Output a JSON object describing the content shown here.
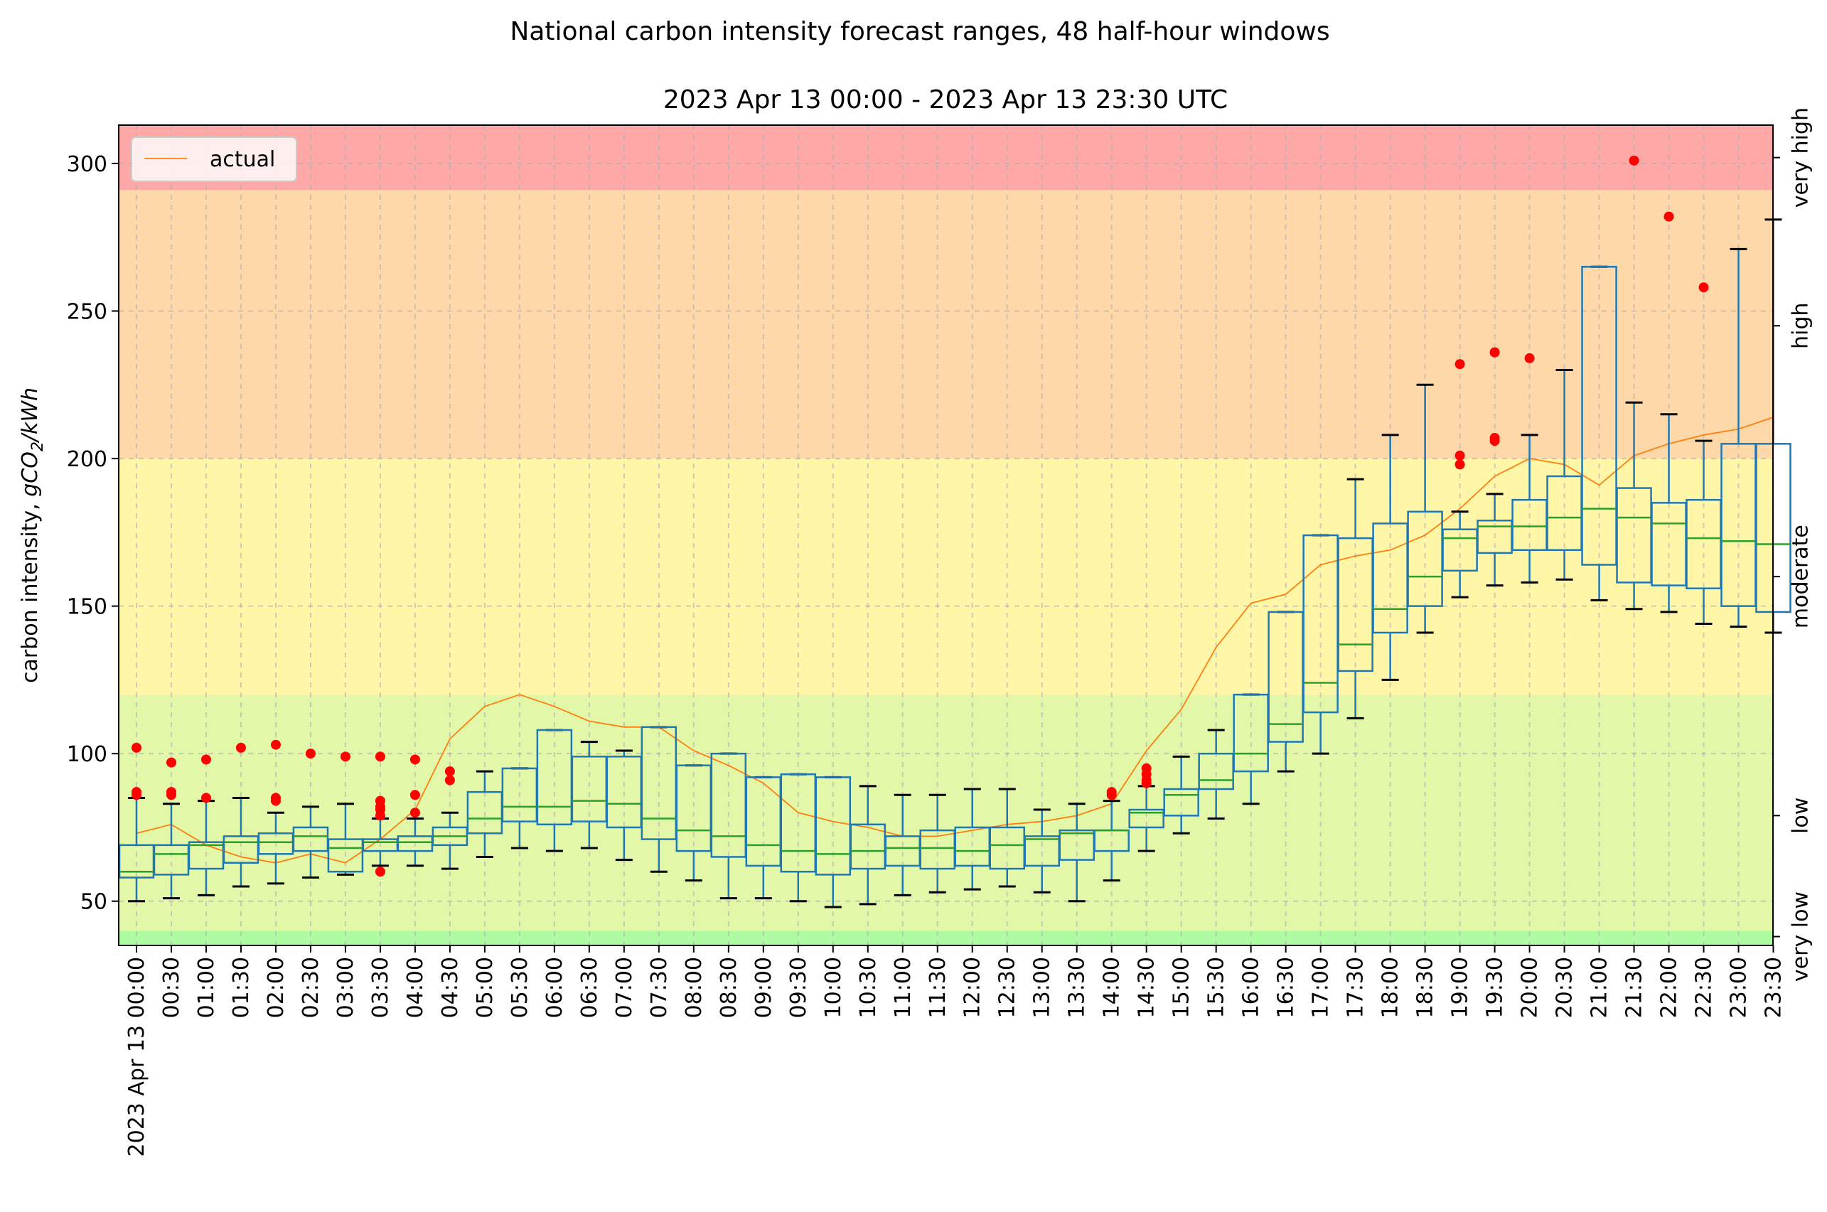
{
  "chart_data": {
    "type": "box",
    "title": "National carbon intensity forecast ranges, 48 half-hour windows",
    "subtitle": "2023 Apr 13 00:00 - 2023 Apr 13 23:30 UTC",
    "ylabel_main": "carbon intensity, ",
    "ylabel_math": "gCO",
    "ylabel_sub": "2",
    "ylabel_tail": "/kWh",
    "ylim": [
      35,
      313
    ],
    "yticks": [
      50,
      100,
      150,
      200,
      250,
      300
    ],
    "grid": true,
    "legend": {
      "position": "top-left",
      "label": "actual"
    },
    "bands": [
      {
        "label": "very low",
        "from": 35,
        "to": 40,
        "color": "#adfca2"
      },
      {
        "label": "low",
        "from": 40,
        "to": 120,
        "color": "#e2f8a8"
      },
      {
        "label": "moderate",
        "from": 120,
        "to": 200,
        "color": "#fff6a8"
      },
      {
        "label": "high",
        "from": 200,
        "to": 291,
        "color": "#fed8a8"
      },
      {
        "label": "very high",
        "from": 291,
        "to": 313,
        "color": "#ffa8a8"
      }
    ],
    "band_tick_values": [
      38,
      79,
      160,
      245,
      302
    ],
    "colors": {
      "box": "#1f77b4",
      "median": "#2ca02c",
      "whisker_cap": "#000000",
      "outlier": "#ff0000",
      "actual": "#ff7f0e"
    },
    "categories": [
      "2023 Apr 13 00:00",
      "00:30",
      "01:00",
      "01:30",
      "02:00",
      "02:30",
      "03:00",
      "03:30",
      "04:00",
      "04:30",
      "05:00",
      "05:30",
      "06:00",
      "06:30",
      "07:00",
      "07:30",
      "08:00",
      "08:30",
      "09:00",
      "09:30",
      "10:00",
      "10:30",
      "11:00",
      "11:30",
      "12:00",
      "12:30",
      "13:00",
      "13:30",
      "14:00",
      "14:30",
      "15:00",
      "15:30",
      "16:00",
      "16:30",
      "17:00",
      "17:30",
      "18:00",
      "18:30",
      "19:00",
      "19:30",
      "20:00",
      "20:30",
      "21:00",
      "21:30",
      "22:00",
      "22:30",
      "23:00",
      "23:30"
    ],
    "boxes": [
      {
        "whislo": 50,
        "q1": 58,
        "med": 60,
        "q3": 69,
        "whishi": 85,
        "fliers": [
          86,
          87,
          102
        ]
      },
      {
        "whislo": 51,
        "q1": 59,
        "med": 66,
        "q3": 69,
        "whishi": 83,
        "fliers": [
          86,
          87,
          97
        ]
      },
      {
        "whislo": 52,
        "q1": 61,
        "med": 69,
        "q3": 70,
        "whishi": 84,
        "fliers": [
          85,
          98
        ]
      },
      {
        "whislo": 55,
        "q1": 63,
        "med": 70,
        "q3": 72,
        "whishi": 85,
        "fliers": [
          102
        ]
      },
      {
        "whislo": 56,
        "q1": 66,
        "med": 70,
        "q3": 73,
        "whishi": 80,
        "fliers": [
          84,
          85,
          103
        ]
      },
      {
        "whislo": 58,
        "q1": 67,
        "med": 72,
        "q3": 75,
        "whishi": 82,
        "fliers": [
          100
        ]
      },
      {
        "whislo": 59,
        "q1": 60,
        "med": 68,
        "q3": 71,
        "whishi": 83,
        "fliers": [
          99
        ]
      },
      {
        "whislo": 62,
        "q1": 67,
        "med": 70,
        "q3": 71,
        "whishi": 78,
        "fliers": [
          60,
          79,
          81,
          82,
          84,
          99
        ]
      },
      {
        "whislo": 62,
        "q1": 67,
        "med": 70,
        "q3": 72,
        "whishi": 78,
        "fliers": [
          80,
          86,
          98
        ]
      },
      {
        "whislo": 61,
        "q1": 69,
        "med": 72,
        "q3": 75,
        "whishi": 80,
        "fliers": [
          91,
          94
        ]
      },
      {
        "whislo": 65,
        "q1": 73,
        "med": 78,
        "q3": 87,
        "whishi": 94,
        "fliers": []
      },
      {
        "whislo": 68,
        "q1": 77,
        "med": 82,
        "q3": 95,
        "whishi": 95,
        "fliers": []
      },
      {
        "whislo": 67,
        "q1": 76,
        "med": 82,
        "q3": 108,
        "whishi": 108,
        "fliers": []
      },
      {
        "whislo": 68,
        "q1": 77,
        "med": 84,
        "q3": 99,
        "whishi": 104,
        "fliers": []
      },
      {
        "whislo": 64,
        "q1": 75,
        "med": 83,
        "q3": 99,
        "whishi": 101,
        "fliers": []
      },
      {
        "whislo": 60,
        "q1": 71,
        "med": 78,
        "q3": 109,
        "whishi": 109,
        "fliers": []
      },
      {
        "whislo": 57,
        "q1": 67,
        "med": 74,
        "q3": 96,
        "whishi": 96,
        "fliers": []
      },
      {
        "whislo": 51,
        "q1": 65,
        "med": 72,
        "q3": 100,
        "whishi": 100,
        "fliers": []
      },
      {
        "whislo": 51,
        "q1": 62,
        "med": 69,
        "q3": 92,
        "whishi": 92,
        "fliers": []
      },
      {
        "whislo": 50,
        "q1": 60,
        "med": 67,
        "q3": 93,
        "whishi": 93,
        "fliers": []
      },
      {
        "whislo": 48,
        "q1": 59,
        "med": 66,
        "q3": 92,
        "whishi": 92,
        "fliers": []
      },
      {
        "whislo": 49,
        "q1": 61,
        "med": 67,
        "q3": 76,
        "whishi": 89,
        "fliers": []
      },
      {
        "whislo": 52,
        "q1": 62,
        "med": 68,
        "q3": 72,
        "whishi": 86,
        "fliers": []
      },
      {
        "whislo": 53,
        "q1": 61,
        "med": 68,
        "q3": 74,
        "whishi": 86,
        "fliers": []
      },
      {
        "whislo": 54,
        "q1": 62,
        "med": 67,
        "q3": 75,
        "whishi": 88,
        "fliers": []
      },
      {
        "whislo": 55,
        "q1": 61,
        "med": 69,
        "q3": 75,
        "whishi": 88,
        "fliers": []
      },
      {
        "whislo": 53,
        "q1": 62,
        "med": 71,
        "q3": 72,
        "whishi": 81,
        "fliers": []
      },
      {
        "whislo": 50,
        "q1": 64,
        "med": 73,
        "q3": 74,
        "whishi": 83,
        "fliers": []
      },
      {
        "whislo": 57,
        "q1": 67,
        "med": 74,
        "q3": 74,
        "whishi": 84,
        "fliers": [
          86,
          87
        ]
      },
      {
        "whislo": 67,
        "q1": 75,
        "med": 80,
        "q3": 81,
        "whishi": 89,
        "fliers": [
          90,
          91,
          93,
          95
        ]
      },
      {
        "whislo": 73,
        "q1": 79,
        "med": 86,
        "q3": 88,
        "whishi": 99,
        "fliers": []
      },
      {
        "whislo": 78,
        "q1": 88,
        "med": 91,
        "q3": 100,
        "whishi": 108,
        "fliers": []
      },
      {
        "whislo": 83,
        "q1": 94,
        "med": 100,
        "q3": 120,
        "whishi": 120,
        "fliers": []
      },
      {
        "whislo": 94,
        "q1": 104,
        "med": 110,
        "q3": 148,
        "whishi": 148,
        "fliers": []
      },
      {
        "whislo": 100,
        "q1": 114,
        "med": 124,
        "q3": 174,
        "whishi": 174,
        "fliers": []
      },
      {
        "whislo": 112,
        "q1": 128,
        "med": 137,
        "q3": 173,
        "whishi": 193,
        "fliers": []
      },
      {
        "whislo": 125,
        "q1": 141,
        "med": 149,
        "q3": 178,
        "whishi": 208,
        "fliers": []
      },
      {
        "whislo": 141,
        "q1": 150,
        "med": 160,
        "q3": 182,
        "whishi": 225,
        "fliers": []
      },
      {
        "whislo": 153,
        "q1": 162,
        "med": 173,
        "q3": 176,
        "whishi": 182,
        "fliers": [
          198,
          201,
          232
        ]
      },
      {
        "whislo": 157,
        "q1": 168,
        "med": 177,
        "q3": 179,
        "whishi": 188,
        "fliers": [
          206,
          207,
          236
        ]
      },
      {
        "whislo": 158,
        "q1": 169,
        "med": 177,
        "q3": 186,
        "whishi": 208,
        "fliers": [
          234
        ]
      },
      {
        "whislo": 159,
        "q1": 169,
        "med": 180,
        "q3": 194,
        "whishi": 230,
        "fliers": []
      },
      {
        "whislo": 152,
        "q1": 164,
        "med": 183,
        "q3": 265,
        "whishi": 265,
        "fliers": []
      },
      {
        "whislo": 149,
        "q1": 158,
        "med": 180,
        "q3": 190,
        "whishi": 219,
        "fliers": [
          301
        ]
      },
      {
        "whislo": 148,
        "q1": 157,
        "med": 178,
        "q3": 185,
        "whishi": 215,
        "fliers": [
          282
        ]
      },
      {
        "whislo": 144,
        "q1": 156,
        "med": 173,
        "q3": 186,
        "whishi": 206,
        "fliers": [
          258
        ]
      },
      {
        "whislo": 143,
        "q1": 150,
        "med": 172,
        "q3": 205,
        "whishi": 271,
        "fliers": []
      },
      {
        "whislo": 141,
        "q1": 148,
        "med": 171,
        "q3": 205,
        "whishi": 281,
        "fliers": []
      }
    ],
    "actual": [
      73,
      76,
      69,
      65,
      63,
      66,
      63,
      71,
      81,
      105,
      116,
      120,
      116,
      111,
      109,
      109,
      101,
      96,
      90,
      80,
      77,
      75,
      72,
      72,
      74,
      76,
      77,
      79,
      83,
      101,
      115,
      136,
      151,
      154,
      164,
      167,
      169,
      174,
      183,
      194,
      200,
      198,
      191,
      201,
      205,
      208,
      210,
      214
    ]
  }
}
